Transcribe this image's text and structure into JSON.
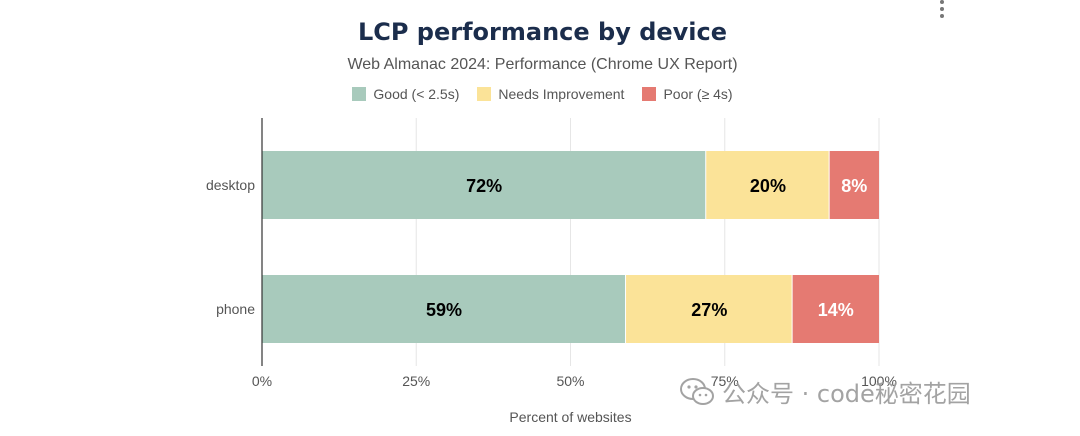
{
  "chart_data": {
    "type": "bar",
    "orientation": "horizontal",
    "stacked": true,
    "title": "LCP performance by device",
    "subtitle": "Web Almanac 2024: Performance (Chrome UX Report)",
    "categories": [
      "desktop",
      "phone"
    ],
    "series": [
      {
        "name": "Good (< 2.5s)",
        "color": "#a8cabc",
        "values": [
          72,
          59
        ],
        "labels": [
          "72%",
          "59%"
        ],
        "label_color": "#000000"
      },
      {
        "name": "Needs Improvement",
        "color": "#fbe398",
        "values": [
          20,
          27
        ],
        "labels": [
          "20%",
          "27%"
        ],
        "label_color": "#000000"
      },
      {
        "name": "Poor (≥ 4s)",
        "color": "#e57a72",
        "values": [
          8,
          14
        ],
        "labels": [
          "8%",
          "14%"
        ],
        "label_color": "#ffffff"
      }
    ],
    "xlim": [
      0,
      100
    ],
    "xticks": [
      0,
      25,
      50,
      75,
      100
    ],
    "xtick_labels": [
      "0%",
      "25%",
      "50%",
      "75%",
      "100%"
    ],
    "xlabel": "Percent of websites",
    "ylabel": "",
    "grid": true,
    "legend_position": "top-center"
  },
  "watermark": {
    "text": "公众号 · code秘密花园"
  }
}
